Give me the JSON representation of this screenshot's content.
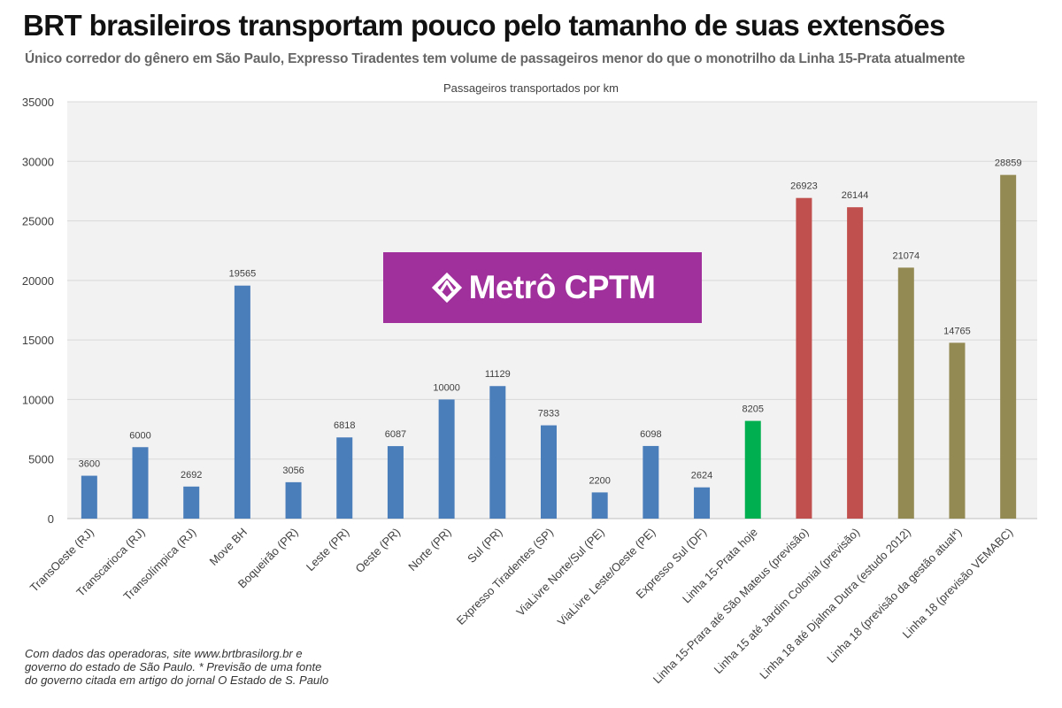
{
  "header": {
    "title": "BRT brasileiros transportam pouco pelo tamanho de suas extensões",
    "subtitle": "Único corredor do gênero em São Paulo, Expresso Tiradentes tem volume de passageiros menor do que o monotrilho da Linha 15-Prata atualmente"
  },
  "logo": {
    "text": "Metrô CPTM",
    "icon": "metro-logo-icon",
    "background": "#a0309b"
  },
  "source": {
    "lines": [
      "Com dados das operadoras, site www.brtbrasilorg.br e",
      "governo do estado de São Paulo. * Previsão de uma fonte",
      "do governo citada em artigo do jornal O Estado de S. Paulo"
    ]
  },
  "chart_data": {
    "type": "bar",
    "title": "Passageiros transportados por km",
    "xlabel": "",
    "ylabel": "",
    "ylim": [
      0,
      35000
    ],
    "yticks": [
      0,
      5000,
      10000,
      15000,
      20000,
      25000,
      30000,
      35000
    ],
    "grid": true,
    "categories": [
      "TransOeste (RJ)",
      "Transcarioca (RJ)",
      "Transolímpica (RJ)",
      "Move BH",
      "Boqueirão (PR)",
      "Leste (PR)",
      "Oeste (PR)",
      "Norte (PR)",
      "Sul (PR)",
      "Expresso Tiradentes (SP)",
      "ViaLivre Norte/Sul (PE)",
      "ViaLivre Leste/Oeste (PE)",
      "Expresso Sul (DF)",
      "Linha 15-Prata hoje",
      "Linha 15-Prara até São Mateus (previsão)",
      "Linha 15 até Jardim Colonial (previsão)",
      "Linha 18 até Djalma Dutra (estudo 2012)",
      "Linha 18 (previsão da gestão atual*)",
      "Linha 18 (previsão VEMABC)"
    ],
    "values": [
      3600,
      6000,
      2692,
      19565,
      3056,
      6818,
      6087,
      10000,
      11129,
      7833,
      2200,
      6098,
      2624,
      8205,
      26923,
      26144,
      21074,
      14765,
      28859
    ],
    "colors": [
      "#4a7ebb",
      "#4a7ebb",
      "#4a7ebb",
      "#4a7ebb",
      "#4a7ebb",
      "#4a7ebb",
      "#4a7ebb",
      "#4a7ebb",
      "#4a7ebb",
      "#4a7ebb",
      "#4a7ebb",
      "#4a7ebb",
      "#4a7ebb",
      "#00b050",
      "#c0504d",
      "#c0504d",
      "#938953",
      "#938953",
      "#938953"
    ],
    "plot_background": "#f2f2f2",
    "gridline_color": "#d9d9d9"
  }
}
